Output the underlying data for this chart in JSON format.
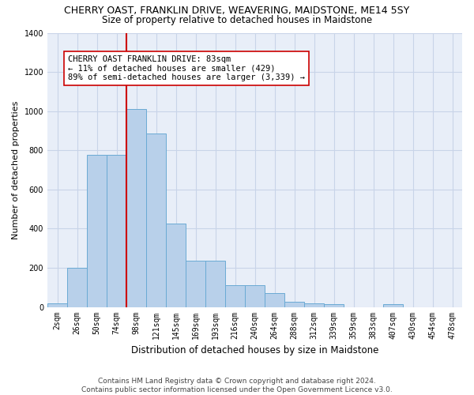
{
  "title": "CHERRY OAST, FRANKLIN DRIVE, WEAVERING, MAIDSTONE, ME14 5SY",
  "subtitle": "Size of property relative to detached houses in Maidstone",
  "xlabel": "Distribution of detached houses by size in Maidstone",
  "ylabel": "Number of detached properties",
  "footer_line1": "Contains HM Land Registry data © Crown copyright and database right 2024.",
  "footer_line2": "Contains public sector information licensed under the Open Government Licence v3.0.",
  "categories": [
    "2sqm",
    "26sqm",
    "50sqm",
    "74sqm",
    "98sqm",
    "121sqm",
    "145sqm",
    "169sqm",
    "193sqm",
    "216sqm",
    "240sqm",
    "264sqm",
    "288sqm",
    "312sqm",
    "339sqm",
    "359sqm",
    "383sqm",
    "407sqm",
    "430sqm",
    "454sqm",
    "478sqm"
  ],
  "bar_heights": [
    20,
    200,
    775,
    775,
    1010,
    885,
    425,
    235,
    235,
    110,
    110,
    70,
    25,
    20,
    15,
    0,
    0,
    15,
    0,
    0,
    0
  ],
  "bar_color": "#b8d0ea",
  "bar_edge_color": "#6aaad4",
  "grid_color": "#c8d4e8",
  "background_color": "#e8eef8",
  "vline_x": 3.5,
  "vline_color": "#cc0000",
  "annotation_text_line1": "CHERRY OAST FRANKLIN DRIVE: 83sqm",
  "annotation_text_line2": "← 11% of detached houses are smaller (429)",
  "annotation_text_line3": "89% of semi-detached houses are larger (3,339) →",
  "ylim": [
    0,
    1400
  ],
  "yticks": [
    0,
    200,
    400,
    600,
    800,
    1000,
    1200,
    1400
  ],
  "title_fontsize": 9,
  "subtitle_fontsize": 8.5,
  "xlabel_fontsize": 8.5,
  "ylabel_fontsize": 8,
  "tick_fontsize": 7,
  "annotation_fontsize": 7.5,
  "footer_fontsize": 6.5
}
